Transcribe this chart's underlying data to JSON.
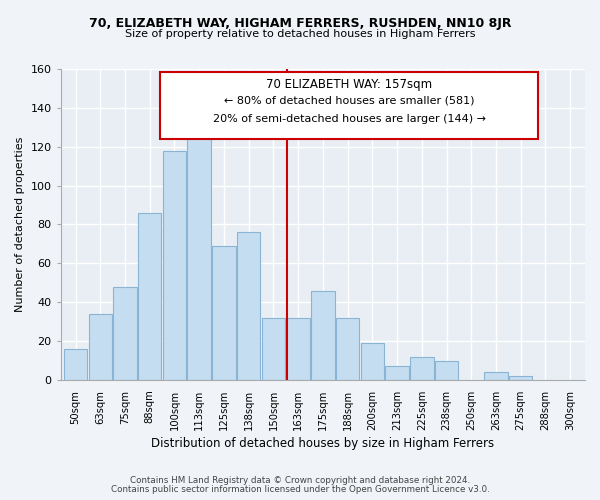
{
  "title": "70, ELIZABETH WAY, HIGHAM FERRERS, RUSHDEN, NN10 8JR",
  "subtitle": "Size of property relative to detached houses in Higham Ferrers",
  "xlabel": "Distribution of detached houses by size in Higham Ferrers",
  "ylabel": "Number of detached properties",
  "bar_labels": [
    "50sqm",
    "63sqm",
    "75sqm",
    "88sqm",
    "100sqm",
    "113sqm",
    "125sqm",
    "138sqm",
    "150sqm",
    "163sqm",
    "175sqm",
    "188sqm",
    "200sqm",
    "213sqm",
    "225sqm",
    "238sqm",
    "250sqm",
    "263sqm",
    "275sqm",
    "288sqm",
    "300sqm"
  ],
  "bar_values": [
    16,
    34,
    48,
    86,
    118,
    127,
    69,
    76,
    32,
    32,
    46,
    32,
    19,
    7,
    12,
    10,
    0,
    4,
    2,
    0,
    0
  ],
  "bar_color": "#c5ddf0",
  "bar_edge_color": "#8ab4d4",
  "annotation_title": "70 ELIZABETH WAY: 157sqm",
  "annotation_line1": "← 80% of detached houses are smaller (581)",
  "annotation_line2": "20% of semi-detached houses are larger (144) →",
  "ylim": [
    0,
    160
  ],
  "yticks": [
    0,
    20,
    40,
    60,
    80,
    100,
    120,
    140,
    160
  ],
  "footer1": "Contains HM Land Registry data © Crown copyright and database right 2024.",
  "footer2": "Contains public sector information licensed under the Open Government Licence v3.0.",
  "bg_color": "#f0f4f8",
  "plot_bg_color": "#e8eef4",
  "grid_color": "#ffffff",
  "vline_color": "#cc0000",
  "ann_box_color": "#cc0000",
  "title_fontsize": 9,
  "subtitle_fontsize": 8
}
